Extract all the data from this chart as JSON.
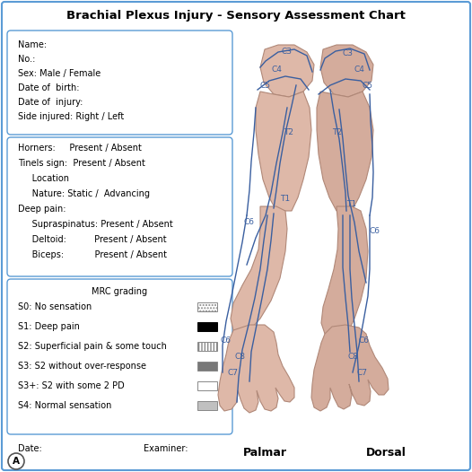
{
  "title": "Brachial Plexus Injury - Sensory Assessment Chart",
  "title_fontsize": 9.5,
  "bg_color": "#ffffff",
  "border_color": "#5b9bd5",
  "box1_lines": [
    "Name:",
    "No.:",
    "Sex: Male / Female",
    "Date of  birth:",
    "Date of  injury:",
    "Side injured: Right / Left"
  ],
  "box2_lines": [
    "Horners:     Present / Absent",
    "Tinels sign:  Present / Absent",
    "     Location",
    "     Nature: Static /  Advancing",
    "Deep pain:",
    "     Supraspinatus: Present / Absent",
    "     Deltoid:          Present / Absent",
    "     Biceps:           Present / Absent"
  ],
  "box3_title": "MRC grading",
  "box3_items": [
    "S0: No sensation",
    "S1: Deep pain",
    "S2: Superficial pain & some touch",
    "S3: S2 without over-response",
    "S3+: S2 with some 2 PD",
    "S4: Normal sensation"
  ],
  "date_label": "Date:",
  "examiner_label": "Examiner:",
  "palmar_label": "Palmar",
  "dorsal_label": "Dorsal",
  "letter_label": "A",
  "skin_color_palmar": "#deb8a8",
  "skin_color_dorsal": "#d4ac9c",
  "outline_color": "#b08878",
  "line_color": "#3a5fa0",
  "font_size": 7.0,
  "label_fontsize": 6.5
}
